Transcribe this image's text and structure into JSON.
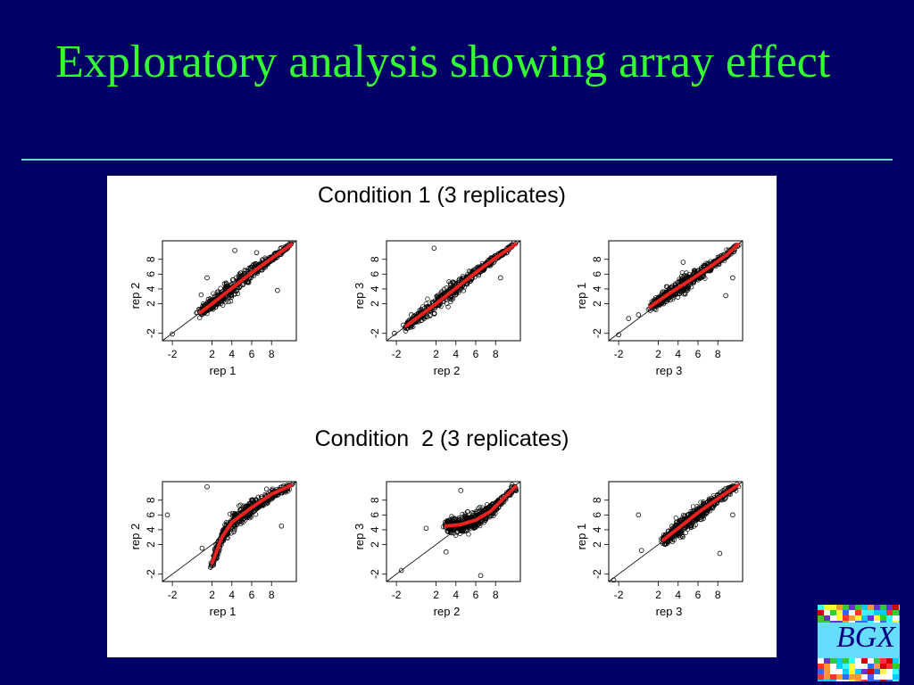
{
  "slide": {
    "title": "Exploratory analysis showing array effect",
    "logo_text": "BGX"
  },
  "colors": {
    "background": "#000066",
    "title": "#33ff33",
    "rule": "#66ddcc",
    "panel": "#ffffff",
    "fit_line": "#e8231f",
    "points": "#000000"
  },
  "chart_data": [
    {
      "group": "Condition 1 (3 replicates)",
      "type": "scatter",
      "plots": [
        {
          "xlabel": "rep 1",
          "ylabel": "rep 2",
          "xlim": [
            -3,
            10.5
          ],
          "ylim": [
            -3,
            10.5
          ],
          "xticks": [
            -2,
            2,
            4,
            6,
            8
          ],
          "yticks": [
            -2,
            2,
            4,
            6,
            8
          ],
          "identity_line": true,
          "fit": [
            [
              0.8,
              0.8
            ],
            [
              2,
              2
            ],
            [
              4,
              4.1
            ],
            [
              6,
              6.2
            ],
            [
              8,
              8.1
            ],
            [
              10,
              10
            ]
          ],
          "outliers": [
            [
              -2,
              -2.1
            ],
            [
              0.9,
              3.2
            ],
            [
              1.5,
              5.5
            ],
            [
              4.3,
              9.2
            ],
            [
              8.6,
              3.8
            ],
            [
              6.5,
              8.9
            ]
          ]
        },
        {
          "xlabel": "rep 2",
          "ylabel": "rep 3",
          "xlim": [
            -3,
            10.5
          ],
          "ylim": [
            -3,
            10.5
          ],
          "xticks": [
            -2,
            2,
            4,
            6,
            8
          ],
          "yticks": [
            -2,
            2,
            4,
            6,
            8
          ],
          "identity_line": true,
          "fit": [
            [
              -1,
              -1
            ],
            [
              2,
              2
            ],
            [
              4,
              4.1
            ],
            [
              6,
              6.2
            ],
            [
              8,
              8.2
            ],
            [
              10,
              10
            ]
          ],
          "outliers": [
            [
              -2.2,
              -2
            ],
            [
              1.8,
              9.5
            ],
            [
              -0.5,
              0.5
            ],
            [
              8.5,
              5.5
            ]
          ]
        },
        {
          "xlabel": "rep 3",
          "ylabel": "rep 1",
          "xlim": [
            -3,
            10.5
          ],
          "ylim": [
            -3,
            10.5
          ],
          "xticks": [
            -2,
            2,
            4,
            6,
            8
          ],
          "yticks": [
            -2,
            2,
            4,
            6,
            8
          ],
          "identity_line": true,
          "fit": [
            [
              1.2,
              1.6
            ],
            [
              3,
              3.3
            ],
            [
              5,
              5
            ],
            [
              7,
              6.8
            ],
            [
              9,
              8.7
            ],
            [
              10,
              10
            ]
          ],
          "outliers": [
            [
              -2,
              -2.2
            ],
            [
              -1,
              0
            ],
            [
              0,
              0.5
            ],
            [
              8.8,
              3.1
            ],
            [
              9.5,
              5.5
            ],
            [
              4.5,
              7.6
            ]
          ]
        }
      ]
    },
    {
      "group": "Condition  2 (3 replicates)",
      "type": "scatter",
      "plots": [
        {
          "xlabel": "rep 1",
          "ylabel": "rep 2",
          "xlim": [
            -3,
            10.5
          ],
          "ylim": [
            -3,
            10.5
          ],
          "xticks": [
            -2,
            2,
            4,
            6,
            8
          ],
          "yticks": [
            -2,
            2,
            4,
            6,
            8
          ],
          "identity_line": true,
          "fit": [
            [
              2,
              -0.5
            ],
            [
              3,
              3
            ],
            [
              4,
              5
            ],
            [
              6,
              7
            ],
            [
              8,
              8.8
            ],
            [
              10,
              10
            ]
          ],
          "outliers": [
            [
              -2.5,
              6
            ],
            [
              1.5,
              9.8
            ],
            [
              1,
              1.5
            ],
            [
              9,
              4.5
            ],
            [
              7.5,
              9.5
            ]
          ]
        },
        {
          "xlabel": "rep 2",
          "ylabel": "rep 3",
          "xlim": [
            -3,
            10.5
          ],
          "ylim": [
            -3,
            10.5
          ],
          "xticks": [
            -2,
            2,
            4,
            6,
            8
          ],
          "yticks": [
            -2,
            2,
            4,
            6,
            8
          ],
          "identity_line": true,
          "fit": [
            [
              3,
              4.5
            ],
            [
              4.5,
              4.7
            ],
            [
              6,
              5.3
            ],
            [
              7.5,
              6.5
            ],
            [
              9,
              8.5
            ],
            [
              10,
              9.8
            ]
          ],
          "outliers": [
            [
              -1.5,
              -1.5
            ],
            [
              3,
              1
            ],
            [
              6.5,
              -2.2
            ],
            [
              4.5,
              9.3
            ],
            [
              1,
              4.2
            ]
          ]
        },
        {
          "xlabel": "rep 3",
          "ylabel": "rep 1",
          "xlim": [
            -3,
            10.5
          ],
          "ylim": [
            -3,
            10.5
          ],
          "xticks": [
            -2,
            2,
            4,
            6,
            8
          ],
          "yticks": [
            -2,
            2,
            4,
            6,
            8
          ],
          "identity_line": true,
          "fit": [
            [
              2.5,
              2.6
            ],
            [
              4,
              4.2
            ],
            [
              6,
              6.3
            ],
            [
              8,
              8.2
            ],
            [
              10,
              10
            ]
          ],
          "outliers": [
            [
              -2.5,
              -2.8
            ],
            [
              0,
              6
            ],
            [
              8.2,
              0.8
            ],
            [
              9.5,
              6
            ],
            [
              0.3,
              1.2
            ]
          ]
        }
      ]
    }
  ]
}
